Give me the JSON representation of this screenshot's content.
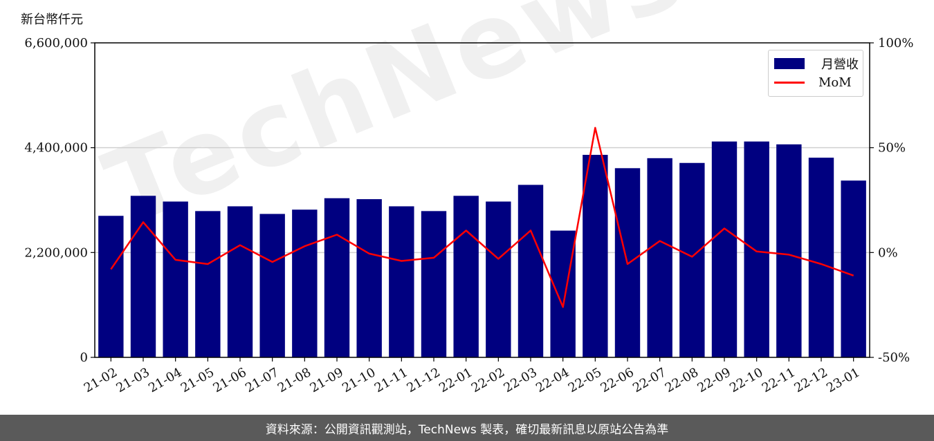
{
  "unit_label": "新台幣仟元",
  "footer_text": "資料來源：公開資訊觀測站，TechNews 製表，確切最新訊息以原站公告為準",
  "watermark": "TechNews",
  "colors": {
    "bar": "#000080",
    "line": "#ff0000",
    "footer_bg": "#5a5a5a"
  },
  "chart_data": {
    "type": "bar",
    "title": "",
    "categories": [
      "21-02",
      "21-03",
      "21-04",
      "21-05",
      "21-06",
      "21-07",
      "21-08",
      "21-09",
      "21-10",
      "21-11",
      "21-12",
      "22-01",
      "22-02",
      "22-03",
      "22-04",
      "22-05",
      "22-06",
      "22-07",
      "22-08",
      "22-09",
      "22-10",
      "22-11",
      "22-12",
      "23-01"
    ],
    "series": [
      {
        "name": "月營收",
        "type": "bar",
        "axis": "left",
        "values": [
          2970000,
          3390000,
          3270000,
          3070000,
          3170000,
          3010000,
          3100000,
          3340000,
          3320000,
          3170000,
          3070000,
          3390000,
          3270000,
          3620000,
          2660000,
          4250000,
          3970000,
          4180000,
          4080000,
          4530000,
          4530000,
          4470000,
          4190000,
          3710000
        ]
      },
      {
        "name": "MoM",
        "type": "line",
        "axis": "right",
        "values": [
          -8,
          14.5,
          -3.5,
          -5.5,
          3.5,
          -4.5,
          3,
          8.5,
          -0.5,
          -4,
          -2.5,
          10.5,
          -3,
          10.5,
          -26,
          59.5,
          -5.5,
          5.5,
          -2,
          11.5,
          0.5,
          -1,
          -5.5,
          -11
        ]
      }
    ],
    "y_left": {
      "range": [
        0,
        6600000
      ],
      "ticks": [
        "0",
        "2,200,000",
        "4,400,000",
        "6,600,000"
      ]
    },
    "y_right": {
      "range": [
        -50,
        100
      ],
      "ticks": [
        "-50%",
        "0%",
        "50%",
        "100%"
      ]
    },
    "grid": "horizontal",
    "legend": {
      "placement": "top-right",
      "entries": [
        "月營收",
        "MoM"
      ]
    }
  }
}
